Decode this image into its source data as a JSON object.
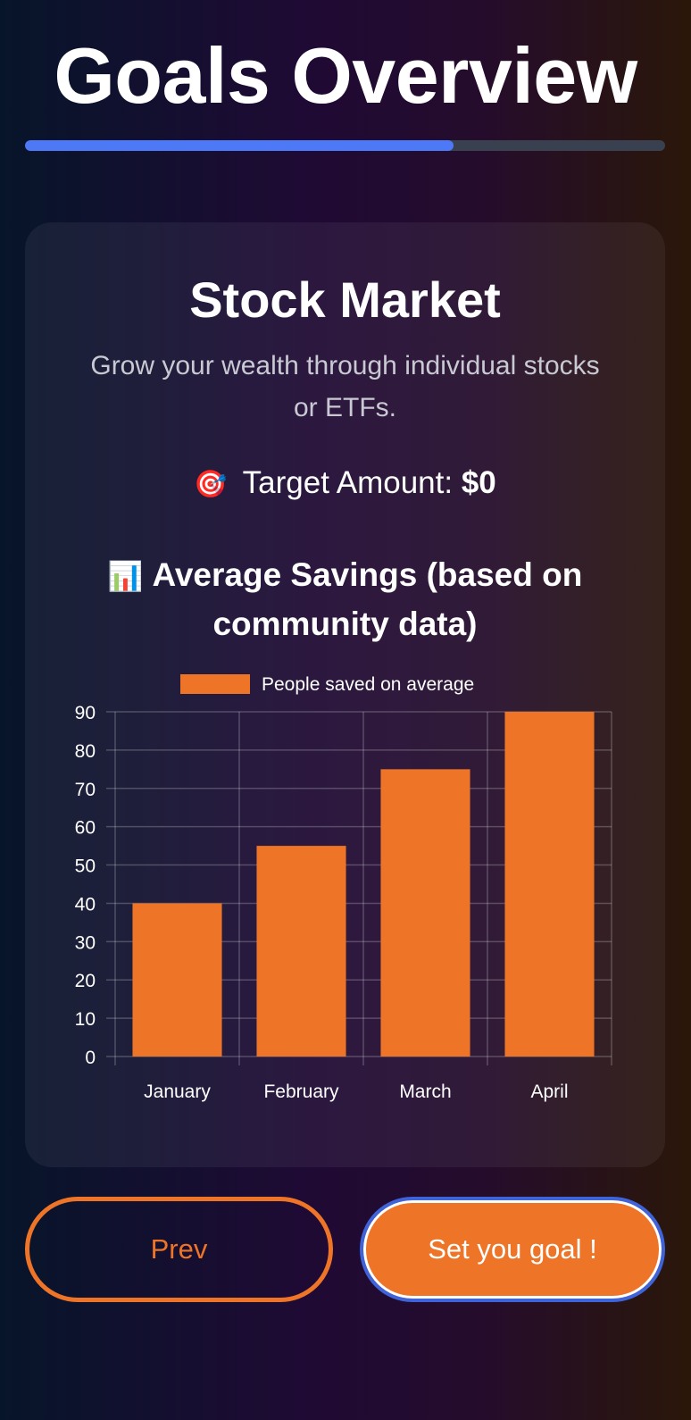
{
  "header": {
    "title": "Goals Overview",
    "progress": 0.67,
    "progress_color": "#4d78f6"
  },
  "card": {
    "title": "Stock Market",
    "description": "Grow your wealth through individual stocks or ETFs.",
    "target_icon": "🎯",
    "target_label": "Target Amount:",
    "target_value": "$0",
    "savings_icon": "📊",
    "savings_heading": "Average Savings (based on community data)"
  },
  "chart_data": {
    "type": "bar",
    "categories": [
      "January",
      "February",
      "March",
      "April"
    ],
    "series": [
      {
        "name": "People saved on average",
        "values": [
          40,
          55,
          75,
          90
        ],
        "color": "#ee7428"
      }
    ],
    "ylim": [
      0,
      90
    ],
    "yticks": [
      0,
      10,
      20,
      30,
      40,
      50,
      60,
      70,
      80,
      90
    ],
    "grid": true,
    "legend_position": "top"
  },
  "buttons": {
    "prev_label": "Prev",
    "set_goal_label": "Set you goal !",
    "accent": "#ee7428"
  }
}
